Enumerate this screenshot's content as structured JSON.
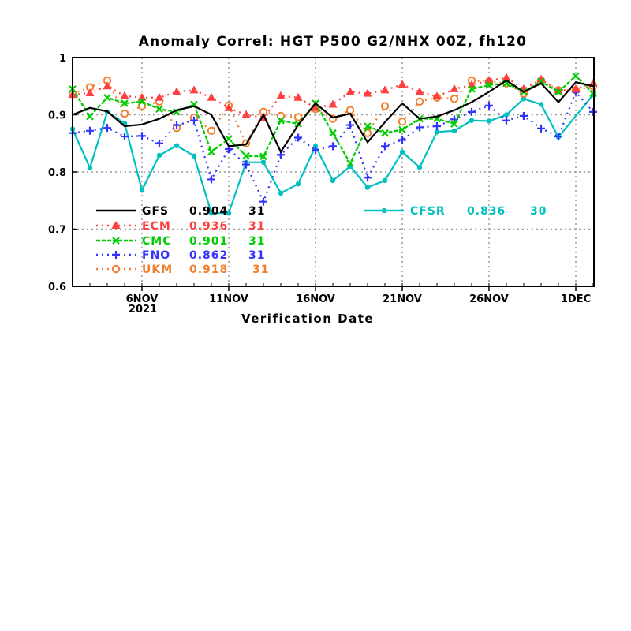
{
  "chart_data": {
    "type": "line",
    "title": "Anomaly Correl: HGT P500 G2/NHX 00Z, fh120",
    "xlabel": "Verification Date",
    "ylabel": "",
    "ylim": [
      0.6,
      1.0
    ],
    "yticks": [
      "0.6",
      "0.7",
      "0.8",
      "0.9",
      "1"
    ],
    "x_start": "2NOV2021",
    "x_end": "2DEC2021",
    "xticks": [
      {
        "day": 4,
        "label": "6NOV"
      },
      {
        "day": 9,
        "label": "11NOV"
      },
      {
        "day": 14,
        "label": "16NOV"
      },
      {
        "day": 19,
        "label": "21NOV"
      },
      {
        "day": 24,
        "label": "26NOV"
      },
      {
        "day": 29,
        "label": "1DEC"
      }
    ],
    "year_label": "2021",
    "grid": true,
    "series": [
      {
        "name": "GFS",
        "mean": "0.904",
        "count": "31",
        "color": "#000000",
        "marker": "none",
        "dash": "solid",
        "values": [
          0.9,
          0.912,
          0.906,
          0.88,
          0.883,
          0.893,
          0.908,
          0.915,
          0.9,
          0.845,
          0.848,
          0.9,
          0.835,
          0.882,
          0.92,
          0.895,
          0.902,
          0.852,
          0.887,
          0.92,
          0.893,
          0.897,
          0.908,
          0.922,
          0.94,
          0.96,
          0.94,
          0.955,
          0.922,
          0.957,
          0.95
        ]
      },
      {
        "name": "ECM",
        "mean": "0.936",
        "count": "31",
        "color": "#ff4040",
        "marker": "triangle",
        "dash": "dotted",
        "values": [
          0.935,
          0.938,
          0.95,
          0.933,
          0.93,
          0.93,
          0.94,
          0.943,
          0.93,
          0.912,
          0.9,
          0.895,
          0.933,
          0.93,
          0.912,
          0.918,
          0.94,
          0.937,
          0.943,
          0.953,
          0.94,
          0.932,
          0.945,
          0.952,
          0.96,
          0.965,
          0.945,
          0.962,
          0.942,
          0.945,
          0.955
        ]
      },
      {
        "name": "CMC",
        "mean": "0.901",
        "count": "31",
        "color": "#00cc00",
        "marker": "x",
        "dash": "dashed",
        "values": [
          0.945,
          0.897,
          0.93,
          0.92,
          0.923,
          0.91,
          0.905,
          0.918,
          0.835,
          0.858,
          0.828,
          0.827,
          0.89,
          0.884,
          0.92,
          0.868,
          0.815,
          0.88,
          0.868,
          0.874,
          0.893,
          0.893,
          0.884,
          0.945,
          0.952,
          0.955,
          0.94,
          0.958,
          0.94,
          0.968,
          0.937
        ]
      },
      {
        "name": "FNO",
        "mean": "0.862",
        "count": "31",
        "color": "#3333ff",
        "marker": "plus",
        "dash": "dotted",
        "values": [
          0.868,
          0.872,
          0.877,
          0.862,
          0.863,
          0.85,
          0.882,
          0.89,
          0.787,
          0.84,
          0.813,
          0.748,
          0.83,
          0.86,
          0.838,
          0.845,
          0.882,
          0.79,
          0.845,
          0.856,
          0.878,
          0.88,
          0.892,
          0.905,
          0.916,
          0.89,
          0.898,
          0.876,
          0.862,
          0.94,
          0.905
        ]
      },
      {
        "name": "UKM",
        "mean": "0.918",
        "count": "31",
        "color": "#f08030",
        "marker": "circle",
        "dash": "dotted",
        "values": [
          0.937,
          0.948,
          0.96,
          0.902,
          0.915,
          0.923,
          0.877,
          0.895,
          0.872,
          0.916,
          0.85,
          0.905,
          0.898,
          0.896,
          0.91,
          0.893,
          0.908,
          0.868,
          0.915,
          0.888,
          0.923,
          0.93,
          0.928,
          0.96,
          0.958,
          0.955,
          0.937,
          0.96,
          0.943,
          0.943,
          0.95
        ]
      },
      {
        "name": "CFSR",
        "mean": "0.836",
        "count": "30",
        "color": "#00c0c0",
        "marker": "dot",
        "dash": "solid",
        "values": [
          0.875,
          0.807,
          0.905,
          0.885,
          0.768,
          0.829,
          0.846,
          0.828,
          0.728,
          0.728,
          0.817,
          0.817,
          0.763,
          0.779,
          0.845,
          0.785,
          0.81,
          0.773,
          0.785,
          0.835,
          0.808,
          0.87,
          0.872,
          0.89,
          0.889,
          0.9,
          0.928,
          0.918,
          0.861,
          null,
          0.935
        ]
      }
    ]
  }
}
